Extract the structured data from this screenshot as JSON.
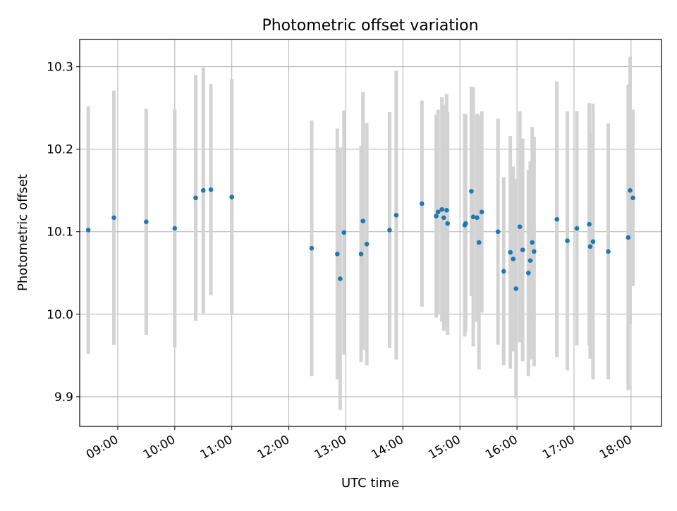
{
  "chart_data": {
    "type": "scatter",
    "title": "Photometric offset variation",
    "xlabel": "UTC time",
    "ylabel": "Photometric offset",
    "grid": true,
    "error_bars": true,
    "x_is_time": true,
    "xlim": [
      "08:20",
      "18:32"
    ],
    "ylim": [
      9.864,
      10.333
    ],
    "x_ticks": [
      "09:00",
      "10:00",
      "11:00",
      "12:00",
      "13:00",
      "14:00",
      "15:00",
      "16:00",
      "17:00",
      "18:00"
    ],
    "y_ticks": [
      9.9,
      10.0,
      10.1,
      10.2,
      10.3
    ],
    "y_tick_labels": [
      "9.9",
      "10.0",
      "10.1",
      "10.2",
      "10.3"
    ],
    "colors": {
      "points": "#1f77b4",
      "errorbars": "#d3d3d3",
      "grid": "#b0b0b0"
    },
    "series": [
      {
        "x": [
          "08:29",
          "08:56",
          "09:30",
          "10:00",
          "10:22",
          "10:30",
          "10:38",
          "11:00",
          "12:24",
          "12:51",
          "12:54",
          "12:58",
          "13:16",
          "13:18",
          "13:22",
          "13:46",
          "13:53",
          "14:20",
          "14:35",
          "14:37",
          "14:41",
          "14:43",
          "14:46",
          "14:47",
          "15:05",
          "15:06",
          "15:12",
          "15:14",
          "15:18",
          "15:20",
          "15:23",
          "15:40",
          "15:46",
          "15:53",
          "15:56",
          "15:59",
          "16:03",
          "16:06",
          "16:12",
          "16:14",
          "16:16",
          "16:18",
          "16:42",
          "16:53",
          "17:03",
          "17:16",
          "17:17",
          "17:20",
          "17:36",
          "17:57",
          "17:59",
          "18:02"
        ],
        "y": [
          10.102,
          10.117,
          10.112,
          10.104,
          10.141,
          10.15,
          10.151,
          10.142,
          10.08,
          10.073,
          10.043,
          10.099,
          10.073,
          10.113,
          10.085,
          10.102,
          10.12,
          10.134,
          10.119,
          10.124,
          10.127,
          10.117,
          10.126,
          10.11,
          10.108,
          10.11,
          10.149,
          10.118,
          10.117,
          10.087,
          10.124,
          10.1,
          10.052,
          10.075,
          10.067,
          10.031,
          10.106,
          10.078,
          10.05,
          10.065,
          10.087,
          10.076,
          10.115,
          10.089,
          10.104,
          10.109,
          10.082,
          10.088,
          10.076,
          10.093,
          10.15,
          10.141
        ],
        "yerr": [
          0.15,
          0.154,
          0.137,
          0.144,
          0.149,
          0.149,
          0.128,
          0.143,
          0.155,
          0.152,
          0.159,
          0.148,
          0.131,
          0.156,
          0.147,
          0.143,
          0.175,
          0.125,
          0.123,
          0.124,
          0.136,
          0.137,
          0.141,
          0.135,
          0.135,
          0.132,
          0.127,
          0.157,
          0.126,
          0.154,
          0.122,
          0.137,
          0.114,
          0.141,
          0.112,
          0.133,
          0.14,
          0.135,
          0.125,
          0.12,
          0.14,
          0.139,
          0.167,
          0.157,
          0.142,
          0.147,
          0.136,
          0.167,
          0.155,
          0.185,
          0.162,
          0.107
        ]
      }
    ]
  }
}
